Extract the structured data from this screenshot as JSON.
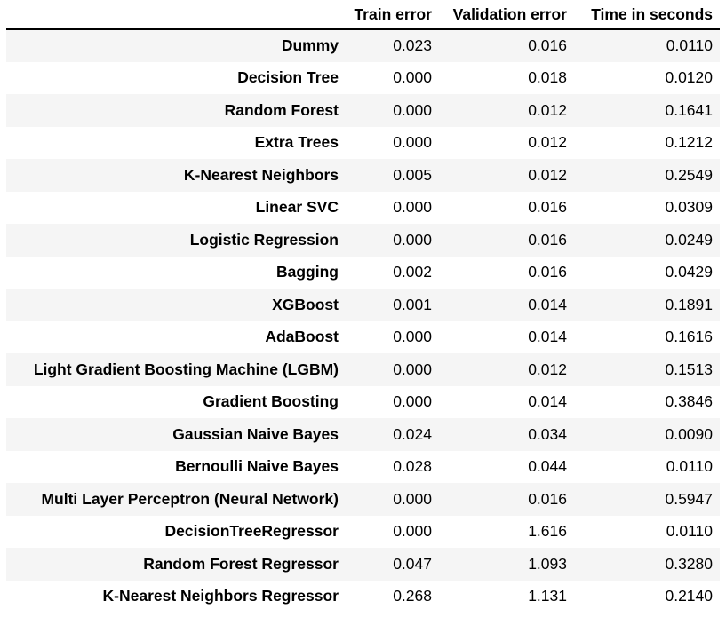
{
  "table": {
    "columns": [
      "",
      "Train error",
      "Validation error",
      "Time in seconds"
    ],
    "rows": [
      {
        "name": "Dummy",
        "train": "0.023",
        "val": "0.016",
        "time": "0.0110"
      },
      {
        "name": "Decision Tree",
        "train": "0.000",
        "val": "0.018",
        "time": "0.0120"
      },
      {
        "name": "Random Forest",
        "train": "0.000",
        "val": "0.012",
        "time": "0.1641"
      },
      {
        "name": "Extra Trees",
        "train": "0.000",
        "val": "0.012",
        "time": "0.1212"
      },
      {
        "name": "K-Nearest Neighbors",
        "train": "0.005",
        "val": "0.012",
        "time": "0.2549"
      },
      {
        "name": "Linear SVC",
        "train": "0.000",
        "val": "0.016",
        "time": "0.0309"
      },
      {
        "name": "Logistic Regression",
        "train": "0.000",
        "val": "0.016",
        "time": "0.0249"
      },
      {
        "name": "Bagging",
        "train": "0.002",
        "val": "0.016",
        "time": "0.0429"
      },
      {
        "name": "XGBoost",
        "train": "0.001",
        "val": "0.014",
        "time": "0.1891"
      },
      {
        "name": "AdaBoost",
        "train": "0.000",
        "val": "0.014",
        "time": "0.1616"
      },
      {
        "name": "Light Gradient Boosting Machine (LGBM)",
        "train": "0.000",
        "val": "0.012",
        "time": "0.1513"
      },
      {
        "name": "Gradient Boosting",
        "train": "0.000",
        "val": "0.014",
        "time": "0.3846"
      },
      {
        "name": "Gaussian Naive Bayes",
        "train": "0.024",
        "val": "0.034",
        "time": "0.0090"
      },
      {
        "name": "Bernoulli Naive Bayes",
        "train": "0.028",
        "val": "0.044",
        "time": "0.0110"
      },
      {
        "name": "Multi Layer Perceptron (Neural Network)",
        "train": "0.000",
        "val": "0.016",
        "time": "0.5947"
      },
      {
        "name": "DecisionTreeRegressor",
        "train": "0.000",
        "val": "1.616",
        "time": "0.0110"
      },
      {
        "name": "Random Forest Regressor",
        "train": "0.047",
        "val": "1.093",
        "time": "0.3280"
      },
      {
        "name": "K-Nearest Neighbors Regressor",
        "train": "0.268",
        "val": "1.131",
        "time": "0.2140"
      }
    ]
  }
}
